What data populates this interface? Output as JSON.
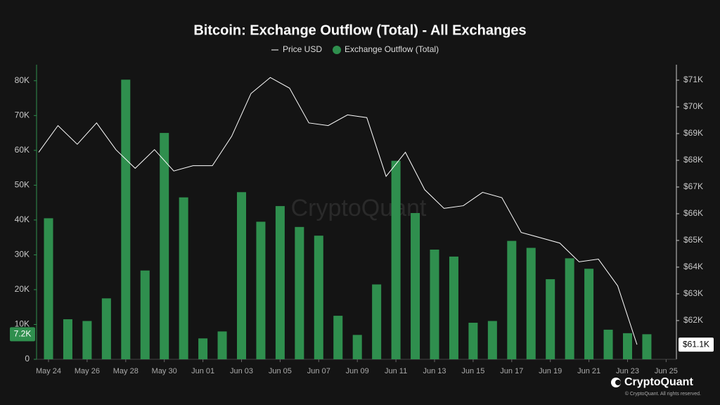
{
  "chart_data": {
    "type": "bar",
    "title": "Bitcoin: Exchange Outflow (Total) - All Exchanges",
    "watermark": "CryptoQuant",
    "brand": "CryptoQuant",
    "copyright": "© CryptoQuant. All rights reserved.",
    "x": [
      "May 24",
      "May 25",
      "May 26",
      "May 27",
      "May 28",
      "May 29",
      "May 30",
      "May 31",
      "Jun 01",
      "Jun 02",
      "Jun 03",
      "Jun 04",
      "Jun 05",
      "Jun 06",
      "Jun 07",
      "Jun 08",
      "Jun 09",
      "Jun 10",
      "Jun 11",
      "Jun 12",
      "Jun 13",
      "Jun 14",
      "Jun 15",
      "Jun 16",
      "Jun 17",
      "Jun 18",
      "Jun 19",
      "Jun 20",
      "Jun 21",
      "Jun 22",
      "Jun 23",
      "Jun 24"
    ],
    "xticks": [
      "May 24",
      "May 26",
      "May 28",
      "May 30",
      "Jun 01",
      "Jun 03",
      "Jun 05",
      "Jun 07",
      "Jun 09",
      "Jun 11",
      "Jun 13",
      "Jun 15",
      "Jun 17",
      "Jun 19",
      "Jun 21",
      "Jun 23",
      "Jun 25"
    ],
    "series": [
      {
        "name": "Price USD",
        "type": "line",
        "axis": "y2",
        "color": "#ffffff",
        "values": [
          68300,
          69300,
          68600,
          69400,
          68400,
          67700,
          68400,
          67600,
          67800,
          67800,
          68900,
          70500,
          71100,
          70700,
          69400,
          69300,
          69700,
          69600,
          67400,
          68300,
          66900,
          66200,
          66300,
          66800,
          66600,
          65300,
          65100,
          64900,
          64200,
          64300,
          63300,
          61100
        ],
        "last_value_label": "$61.1K"
      },
      {
        "name": "Exchange Outflow (Total)",
        "type": "bar",
        "color": "#2f8f4e",
        "values": [
          40500,
          11500,
          11000,
          17500,
          80300,
          25500,
          65000,
          46500,
          6000,
          8000,
          48000,
          39500,
          44000,
          38000,
          35500,
          12500,
          7000,
          21500,
          57000,
          42000,
          31500,
          29500,
          10500,
          11000,
          34000,
          32000,
          23000,
          29000,
          26000,
          8500,
          7500,
          7200
        ],
        "last_value_label": "7.2K"
      }
    ],
    "ylim": [
      0,
      84600
    ],
    "yticks": [
      {
        "value": 0,
        "label": "0"
      },
      {
        "value": 10000,
        "label": "10K"
      },
      {
        "value": 20000,
        "label": "20K"
      },
      {
        "value": 30000,
        "label": "30K"
      },
      {
        "value": 40000,
        "label": "40K"
      },
      {
        "value": 50000,
        "label": "50K"
      },
      {
        "value": 60000,
        "label": "60K"
      },
      {
        "value": 70000,
        "label": "70K"
      },
      {
        "value": 80000,
        "label": "80K"
      }
    ],
    "y2lim": [
      60550,
      71580
    ],
    "y2ticks": [
      {
        "value": 62000,
        "label": "$62K"
      },
      {
        "value": 63000,
        "label": "$63K"
      },
      {
        "value": 64000,
        "label": "$64K"
      },
      {
        "value": 65000,
        "label": "$65K"
      },
      {
        "value": 66000,
        "label": "$66K"
      },
      {
        "value": 67000,
        "label": "$67K"
      },
      {
        "value": 68000,
        "label": "$68K"
      },
      {
        "value": 69000,
        "label": "$69K"
      },
      {
        "value": 70000,
        "label": "$70K"
      },
      {
        "value": 71000,
        "label": "$71K"
      }
    ],
    "grid": false
  }
}
